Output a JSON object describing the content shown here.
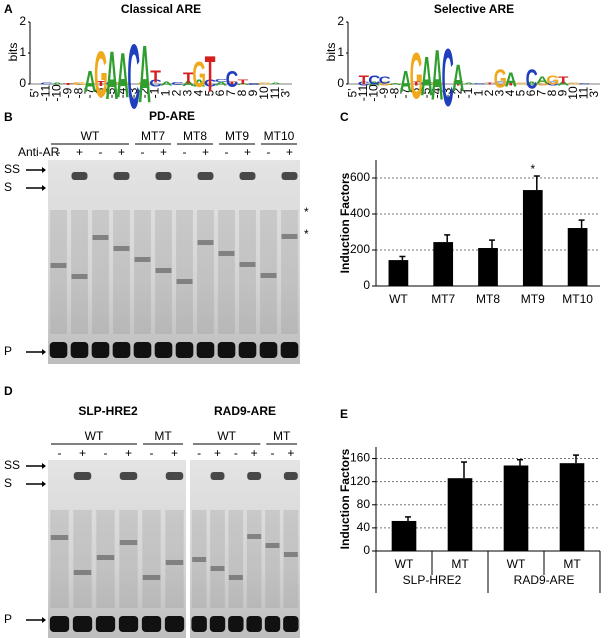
{
  "panel_labels": [
    "A",
    "B",
    "C",
    "D",
    "E"
  ],
  "logos": [
    {
      "title": "Classical ARE",
      "ylabel": "bits",
      "ylim": [
        0,
        2
      ],
      "yticks": [
        0,
        1,
        2
      ],
      "positions": [
        "5'",
        "-11",
        "-10",
        "-9",
        "-8",
        "-7",
        "-6",
        "-5",
        "-4",
        "-3",
        "-2",
        "-1",
        "1",
        "2",
        "3",
        "4",
        "5",
        "6",
        "7",
        "8",
        "9",
        "10",
        "11",
        "3'"
      ],
      "stacks": [
        [],
        [
          [
            "C",
            0.05
          ]
        ],
        [
          [
            "A",
            0.05
          ]
        ],
        [
          [
            "T",
            0.06
          ]
        ],
        [
          [
            "G",
            0.08
          ]
        ],
        [
          [
            "A",
            0.6
          ]
        ],
        [
          [
            "T",
            0.15
          ],
          [
            "G",
            1.3
          ]
        ],
        [
          [
            "C",
            0.1
          ],
          [
            "A",
            1.35
          ]
        ],
        [
          [
            "G",
            0.1
          ],
          [
            "A",
            1.25
          ]
        ],
        [
          [
            "C",
            1.8
          ]
        ],
        [
          [
            "G",
            0.1
          ],
          [
            "A",
            1.6
          ]
        ],
        [
          [
            "C",
            0.2
          ],
          [
            "T",
            0.35
          ]
        ],
        [
          [
            "A",
            0.1
          ]
        ],
        [
          [
            "C",
            0.08
          ]
        ],
        [
          [
            "A",
            0.15
          ],
          [
            "T",
            0.3
          ]
        ],
        [
          [
            "A",
            0.2
          ],
          [
            "G",
            0.7
          ]
        ],
        [
          [
            "C",
            0.2
          ],
          [
            "T",
            1.0
          ]
        ],
        [
          [
            "A",
            0.1
          ],
          [
            "C",
            0.08
          ]
        ],
        [
          [
            "T",
            0.1
          ],
          [
            "C",
            0.45
          ]
        ],
        [
          [
            "A",
            0.06
          ],
          [
            "T",
            0.12
          ]
        ],
        [
          [
            "C",
            0.06
          ]
        ],
        [
          [
            "G",
            0.05
          ]
        ],
        [
          [
            "A",
            0.05
          ]
        ],
        []
      ]
    },
    {
      "title": "Selective ARE",
      "ylabel": "bits",
      "ylim": [
        0,
        2
      ],
      "yticks": [
        0,
        1,
        2
      ],
      "positions": [
        "5'",
        "-11",
        "-10",
        "-9",
        "-8",
        "-7",
        "-6",
        "-5",
        "-4",
        "-3",
        "-2",
        "-1",
        "1",
        "2",
        "3",
        "4",
        "5",
        "6",
        "7",
        "8",
        "9",
        "10",
        "11",
        "3'"
      ],
      "stacks": [
        [],
        [
          [
            "C",
            0.1
          ],
          [
            "T",
            0.25
          ]
        ],
        [
          [
            "A",
            0.1
          ],
          [
            "C",
            0.25
          ]
        ],
        [
          [
            "G",
            0.1
          ],
          [
            "C",
            0.2
          ]
        ],
        [
          [
            "A",
            0.06
          ]
        ],
        [
          [
            "A",
            0.6
          ]
        ],
        [
          [
            "T",
            0.1
          ],
          [
            "G",
            1.3
          ]
        ],
        [
          [
            "C",
            0.1
          ],
          [
            "A",
            1.1
          ]
        ],
        [
          [
            "G",
            0.1
          ],
          [
            "A",
            1.4
          ]
        ],
        [
          [
            "C",
            1.6
          ]
        ],
        [
          [
            "T",
            0.1
          ],
          [
            "A",
            0.75
          ]
        ],
        [
          [
            "A",
            0.05
          ]
        ],
        [
          [
            "C",
            0.04
          ]
        ],
        [
          [
            "T",
            0.05
          ]
        ],
        [
          [
            "C",
            0.1
          ],
          [
            "G",
            0.5
          ]
        ],
        [
          [
            "T",
            0.1
          ],
          [
            "A",
            0.4
          ]
        ],
        [
          [
            "G",
            0.05
          ]
        ],
        [
          [
            "A",
            0.1
          ],
          [
            "C",
            0.55
          ]
        ],
        [
          [
            "G",
            0.1
          ],
          [
            "A",
            0.2
          ]
        ],
        [
          [
            "C",
            0.1
          ],
          [
            "G",
            0.25
          ]
        ],
        [
          [
            "A",
            0.1
          ],
          [
            "T",
            0.2
          ]
        ],
        [
          [
            "G",
            0.05
          ]
        ],
        [
          [
            "C",
            0.04
          ]
        ],
        []
      ]
    }
  ],
  "gel_b": {
    "title": "PD-ARE",
    "treatment": "Anti-AR",
    "groups": [
      {
        "name": "WT",
        "signs": [
          "-",
          "+",
          "-",
          "+"
        ]
      },
      {
        "name": "MT7",
        "signs": [
          "-",
          "+"
        ]
      },
      {
        "name": "MT8",
        "signs": [
          "-",
          "+"
        ]
      },
      {
        "name": "MT9",
        "signs": [
          "-",
          "+"
        ]
      },
      {
        "name": "MT10",
        "signs": [
          "-",
          "+"
        ]
      }
    ],
    "markers": [
      "SS",
      "S",
      "P"
    ],
    "asterisks": [
      "*",
      "*"
    ]
  },
  "gels_d": [
    {
      "title": "SLP-HRE2",
      "groups": [
        {
          "name": "WT",
          "signs": [
            "-",
            "+",
            "-",
            "+"
          ]
        },
        {
          "name": "MT",
          "signs": [
            "-",
            "+"
          ]
        }
      ],
      "markers": [
        "SS",
        "S",
        "P"
      ]
    },
    {
      "title": "RAD9-ARE",
      "groups": [
        {
          "name": "WT",
          "signs": [
            "-",
            "+",
            "-",
            "+"
          ]
        },
        {
          "name": "MT",
          "signs": [
            "-",
            "+"
          ]
        }
      ]
    }
  ],
  "chart_data": [
    {
      "type": "bar",
      "ylabel": "Induction Factors",
      "categories": [
        "WT",
        "MT7",
        "MT8",
        "MT9",
        "MT10"
      ],
      "values": [
        144,
        244,
        211,
        533,
        322
      ],
      "errors": [
        20,
        40,
        44,
        78,
        44
      ],
      "significance": [
        null,
        null,
        null,
        "*",
        null
      ],
      "color": "#000000",
      "ylim": [
        0,
        700
      ],
      "yticks": [
        0,
        200,
        400,
        600
      ],
      "grid": true
    },
    {
      "type": "bar",
      "ylabel": "Induction Factors",
      "categories": [
        "WT",
        "MT",
        "WT",
        "MT"
      ],
      "group_labels": [
        "SLP-HRE2",
        "RAD9-ARE"
      ],
      "values": [
        52,
        126,
        148,
        152
      ],
      "errors": [
        7,
        28,
        10,
        14
      ],
      "color": "#000000",
      "ylim": [
        0,
        180
      ],
      "yticks": [
        0,
        40,
        80,
        120,
        160
      ],
      "grid": true
    }
  ]
}
